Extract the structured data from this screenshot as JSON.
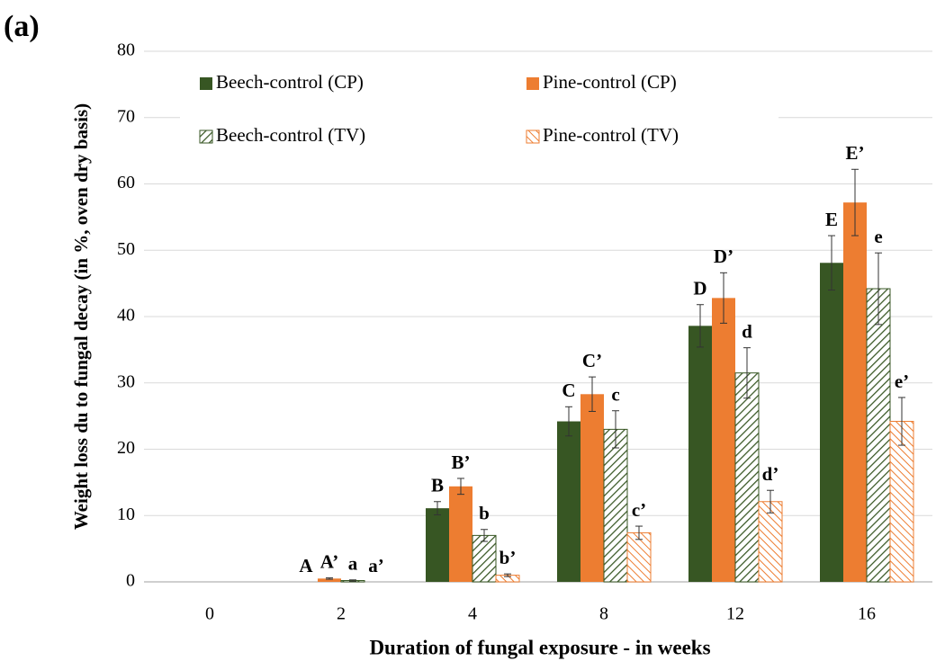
{
  "chart_data": {
    "type": "bar",
    "panel_label": "(a)",
    "xlabel": "Duration of fungal exposure - in weeks",
    "ylabel": "Weight loss du to fungal decay (in %, oven dry basis)",
    "categories": [
      "0",
      "2",
      "4",
      "8",
      "12",
      "16"
    ],
    "ylim": [
      0,
      80
    ],
    "yticks": [
      0,
      10,
      20,
      30,
      40,
      50,
      60,
      70,
      80
    ],
    "grid": true,
    "legend": "top-left",
    "series": [
      {
        "name": "Beech-control (CP)",
        "color": "#375623",
        "hatch": false,
        "values": [
          0,
          0,
          11.1,
          24.2,
          38.6,
          48.1
        ],
        "errors": [
          0,
          0,
          1.0,
          2.2,
          3.2,
          4.1
        ],
        "labels": [
          null,
          "A",
          "B",
          "C",
          "D",
          "E"
        ]
      },
      {
        "name": "Pine-control (CP)",
        "color": "#ed7d31",
        "hatch": false,
        "values": [
          0,
          0.5,
          14.4,
          28.3,
          42.8,
          57.2
        ],
        "errors": [
          0,
          0.1,
          1.2,
          2.6,
          3.8,
          5.0
        ],
        "labels": [
          null,
          "A’",
          "B’",
          "C’",
          "D’",
          "E’"
        ]
      },
      {
        "name": "Beech-control (TV)",
        "color": "#375623",
        "hatch": true,
        "values": [
          0,
          0.2,
          7.0,
          23.0,
          31.5,
          44.2
        ],
        "errors": [
          0,
          0.1,
          0.9,
          2.8,
          3.8,
          5.4
        ],
        "labels": [
          null,
          "a",
          "b",
          "c",
          "d",
          "e"
        ]
      },
      {
        "name": "Pine-control (TV)",
        "color": "#ed7d31",
        "hatch": true,
        "values": [
          0,
          0,
          1.0,
          7.4,
          12.1,
          24.2
        ],
        "errors": [
          0,
          0,
          0.2,
          1.0,
          1.7,
          3.6
        ],
        "labels": [
          null,
          "a’",
          "b’",
          "c’",
          "d’",
          "e’"
        ]
      }
    ]
  }
}
